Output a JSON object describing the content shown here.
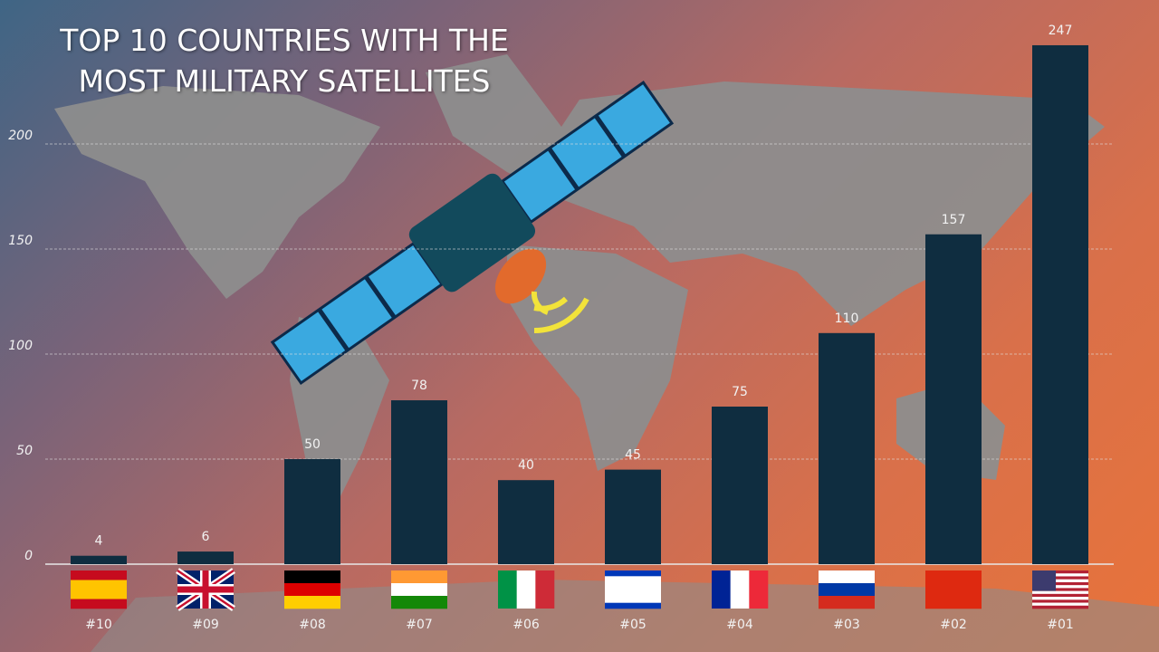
{
  "chart_data": {
    "type": "bar",
    "title": "TOP 10 COUNTRIES WITH THE MOST MILITARY SATELLITES",
    "categories": [
      "#10",
      "#09",
      "#08",
      "#07",
      "#06",
      "#05",
      "#04",
      "#03",
      "#02",
      "#01"
    ],
    "values": [
      4,
      6,
      50,
      78,
      40,
      45,
      75,
      110,
      157,
      247
    ],
    "color": "#0f2d40",
    "ylim": [
      0,
      250
    ],
    "yticks": [
      0,
      50,
      100,
      150,
      200
    ],
    "grid": true
  }
}
